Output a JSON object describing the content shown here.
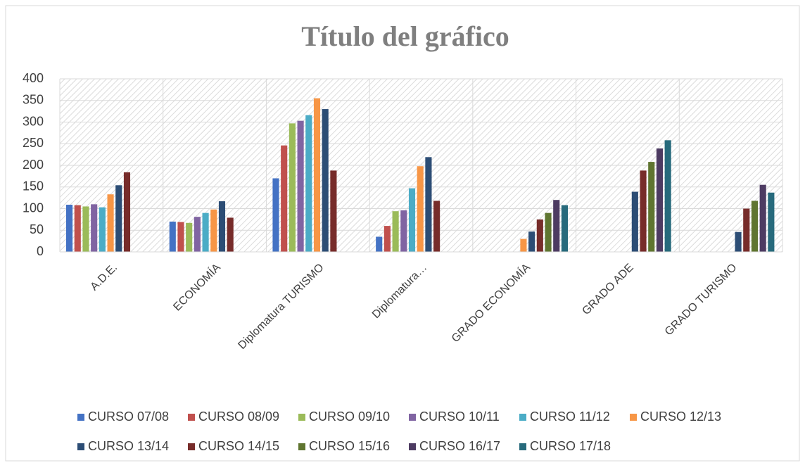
{
  "chart_data": {
    "type": "bar",
    "title": "Título del gráfico",
    "categories": [
      "A.D.E.",
      "ECONOMÍA",
      "Diplomatura TURISMO",
      "Diplomatura…",
      "GRADO ECONOMÍA",
      "GRADO ADE",
      "GRADO TURISMO"
    ],
    "series": [
      {
        "name": "CURSO 07/08",
        "color": "#4472c4",
        "values": [
          109,
          70,
          170,
          35,
          null,
          null,
          null
        ]
      },
      {
        "name": "CURSO 08/09",
        "color": "#c0504d",
        "values": [
          108,
          69,
          246,
          60,
          null,
          null,
          null
        ]
      },
      {
        "name": "CURSO 09/10",
        "color": "#9bbb59",
        "values": [
          105,
          67,
          297,
          94,
          null,
          null,
          null
        ]
      },
      {
        "name": "CURSO 10/11",
        "color": "#8064a2",
        "values": [
          110,
          81,
          303,
          96,
          null,
          null,
          null
        ]
      },
      {
        "name": "CURSO 11/12",
        "color": "#4bacc6",
        "values": [
          103,
          90,
          316,
          147,
          null,
          null,
          null
        ]
      },
      {
        "name": "CURSO 12/13",
        "color": "#f79646",
        "values": [
          133,
          98,
          355,
          198,
          30,
          null,
          null
        ]
      },
      {
        "name": "CURSO 13/14",
        "color": "#2c4d75",
        "values": [
          154,
          117,
          330,
          219,
          47,
          139,
          46
        ]
      },
      {
        "name": "CURSO 14/15",
        "color": "#772c2a",
        "values": [
          184,
          79,
          188,
          118,
          75,
          188,
          100
        ]
      },
      {
        "name": "CURSO 15/16",
        "color": "#5f7530",
        "values": [
          null,
          null,
          null,
          null,
          90,
          208,
          118
        ]
      },
      {
        "name": "CURSO 16/17",
        "color": "#4d3b62",
        "values": [
          null,
          null,
          null,
          null,
          120,
          239,
          155
        ]
      },
      {
        "name": "CURSO 17/18",
        "color": "#276a7c",
        "values": [
          null,
          null,
          null,
          null,
          108,
          258,
          137
        ]
      }
    ],
    "ylim": [
      0,
      400
    ],
    "yticks": [
      0,
      50,
      100,
      150,
      200,
      250,
      300,
      350,
      400
    ],
    "grid": true,
    "legend": "bottom"
  }
}
